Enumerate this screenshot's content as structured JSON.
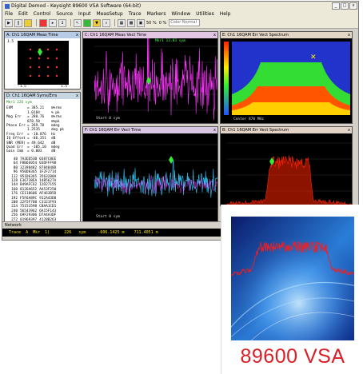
{
  "window": {
    "title": "Digital Demod - Keysight 89600 VSA Software (64-bit)",
    "controls": [
      "_",
      "□",
      "x"
    ]
  },
  "menu": [
    "File",
    "Edit",
    "Control",
    "Source",
    "Input",
    "MeasSetup",
    "Trace",
    "Markers",
    "Window",
    "Utilities",
    "Help"
  ],
  "toolbar": {
    "zoom_a": "50 %",
    "zoom_b": "0 %",
    "color_mode": "Color Normal"
  },
  "panels": {
    "a": {
      "title": "A: Ch1 16QAM Meas Time",
      "range_left": "-1.5",
      "range_right": "1.5"
    },
    "c": {
      "title": "C: Ch1 16QAM Meas Vect Time",
      "sub": "Mkr1 13.83 sym",
      "footer": "Start 0 sym"
    },
    "e": {
      "title": "E: Ch1 16QAM Err Vect Spectrum",
      "footer": "Center 870 MHz"
    },
    "d": {
      "title": "D: Ch1 16QAM Syms/Errs",
      "sub": "Mkr1 226 sym"
    },
    "f": {
      "title": "F: Ch1 16QAM Err Vect Time",
      "footer": "Start 0 sym"
    },
    "b": {
      "title": "B: Ch1 16QAM Err Vect Spectrum"
    }
  },
  "syms_table": {
    "metrics": [
      {
        "k": "EVM",
        "v": "= 385.21",
        "u": "m%rms"
      },
      {
        "k": "",
        "v": "1.0184",
        "u": "% pk"
      },
      {
        "k": "Mag Err",
        "v": "= 280.76",
        "u": "m%rms"
      },
      {
        "k": "",
        "v": "878.58",
        "u": "m%pk"
      },
      {
        "k": "Phase Err",
        "v": "= 269.78",
        "u": "mdeg"
      },
      {
        "k": "",
        "v": "1.2535",
        "u": "deg pk"
      },
      {
        "k": "Freq Err",
        "v": "= -10.876",
        "u": "Hz"
      },
      {
        "k": "IQ Offset",
        "v": "= -86.351",
        "u": "dB"
      },
      {
        "k": "SNR (MER)",
        "v": "= 49.642",
        "u": "dB"
      },
      {
        "k": "Quad Err",
        "v": "= -105.10",
        "u": "mdeg"
      },
      {
        "k": "Gain Imb",
        "v": "= 0.003",
        "u": "dB"
      }
    ],
    "rows": [
      {
        "n": "48",
        "a": "7A3ED53B",
        "b": "0387C8EE"
      },
      {
        "n": "64",
        "a": "F8B6E054",
        "b": "03DFFF98"
      },
      {
        "n": "80",
        "a": "32398482",
        "b": "8784848D"
      },
      {
        "n": "96",
        "a": "950D8365",
        "b": "1F2F2714"
      },
      {
        "n": "112",
        "a": "951D6365",
        "b": "3563280A"
      },
      {
        "n": "128",
        "a": "E36738EA",
        "b": "14B5627A"
      },
      {
        "n": "144",
        "a": "B49AFC62",
        "b": "12D27155"
      },
      {
        "n": "160",
        "a": "8126A652",
        "b": "AA53F250"
      },
      {
        "n": "176",
        "a": "CE118606",
        "b": "AF463B5D"
      },
      {
        "n": "192",
        "a": "F5F6A89C",
        "b": "912A43D0"
      },
      {
        "n": "208",
        "a": "22F5F708",
        "b": "C3321F93"
      },
      {
        "n": "224",
        "a": "75153598",
        "b": "CBAA1CD1"
      },
      {
        "n": "240",
        "a": "56543962",
        "b": "6A15F143"
      },
      {
        "n": "256",
        "a": "69F29306",
        "b": "D7A4A3DF"
      },
      {
        "n": "272",
        "a": "01969397",
        "b": "4128B263"
      }
    ]
  },
  "bottom": {
    "section": "Network",
    "trace_row": "Trace  A  Mkr  1)      226   sym     -606.1425 m    711.4051 m"
  },
  "hero": {
    "title": "89600 VSA"
  },
  "colors": {
    "magenta_trace": "#ff33ff",
    "cyan_trace": "#33ccff",
    "spectrum_red": "#ff2200",
    "brand_red": "#d91f26"
  }
}
